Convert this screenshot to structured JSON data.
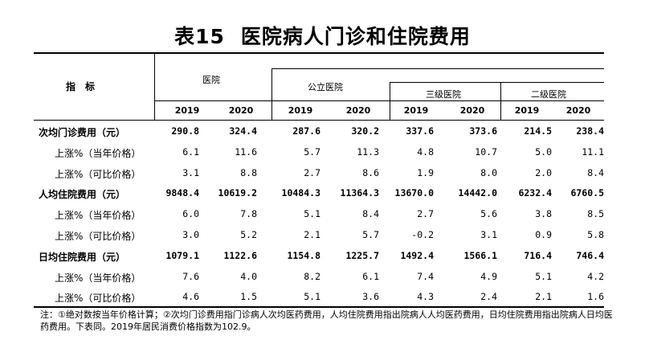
{
  "title": {
    "table_no": "表15",
    "text": "医院病人门诊和住院费用"
  },
  "header": {
    "indicator": "指　标",
    "hospital": "医院",
    "public_hospital": "公立医院",
    "tertiary": "三级医院",
    "secondary": "二级医院",
    "years": [
      "2019",
      "2020",
      "2019",
      "2020",
      "2019",
      "2020",
      "2019",
      "2020"
    ]
  },
  "rows": [
    {
      "label": "次均门诊费用（元）",
      "bold": true,
      "values": [
        "290.8",
        "324.4",
        "287.6",
        "320.2",
        "337.6",
        "373.6",
        "214.5",
        "238.4"
      ]
    },
    {
      "label": "上涨%（当年价格）",
      "bold": false,
      "values": [
        "6.1",
        "11.6",
        "5.7",
        "11.3",
        "4.8",
        "10.7",
        "5.0",
        "11.1"
      ]
    },
    {
      "label": "上涨%（可比价格）",
      "bold": false,
      "values": [
        "3.1",
        "8.8",
        "2.7",
        "8.6",
        "1.9",
        "8.0",
        "2.0",
        "8.4"
      ]
    },
    {
      "label": "人均住院费用（元）",
      "bold": true,
      "values": [
        "9848.4",
        "10619.2",
        "10484.3",
        "11364.3",
        "13670.0",
        "14442.0",
        "6232.4",
        "6760.5"
      ]
    },
    {
      "label": "上涨%（当年价格）",
      "bold": false,
      "values": [
        "6.0",
        "7.8",
        "5.1",
        "8.4",
        "2.7",
        "5.6",
        "3.8",
        "8.5"
      ]
    },
    {
      "label": "上涨%（可比价格）",
      "bold": false,
      "values": [
        "3.0",
        "5.2",
        "2.1",
        "5.7",
        "-0.2",
        "3.1",
        "0.9",
        "5.8"
      ]
    },
    {
      "label": "日均住院费用（元）",
      "bold": true,
      "values": [
        "1079.1",
        "1122.6",
        "1154.8",
        "1225.7",
        "1492.4",
        "1566.1",
        "716.4",
        "746.4"
      ]
    },
    {
      "label": "上涨%（当年价格）",
      "bold": false,
      "values": [
        "7.6",
        "4.0",
        "8.2",
        "6.1",
        "7.4",
        "4.9",
        "5.1",
        "4.2"
      ]
    },
    {
      "label": "上涨%（可比价格）",
      "bold": false,
      "values": [
        "4.6",
        "1.5",
        "5.1",
        "3.6",
        "4.3",
        "2.4",
        "2.1",
        "1.6"
      ]
    }
  ],
  "note": "注：①绝对数按当年价格计算；②次均门诊费用指门诊病人次均医药费用，人均住院费用指出院病人人均医药费用，日均住院费用指出院病人日均医药费用。下表同。2019年居民消费价格指数为102.9。"
}
